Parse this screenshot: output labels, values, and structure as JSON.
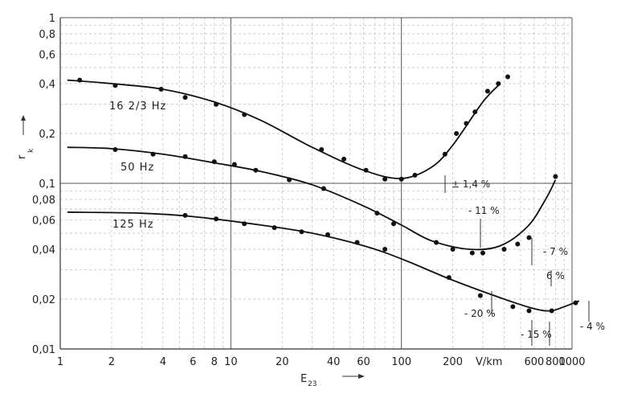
{
  "chart_data": {
    "type": "line",
    "x_scale": "log",
    "y_scale": "log",
    "xlim": [
      1,
      1000
    ],
    "ylim": [
      0.01,
      1
    ],
    "grid": true,
    "xlabel": "E",
    "xlabel_sub": "23",
    "ylabel": "r",
    "ylabel_sub": "k",
    "x_unit": "V/km",
    "x_ticks": [
      {
        "v": 1,
        "t": "1"
      },
      {
        "v": 2,
        "t": "2"
      },
      {
        "v": 4,
        "t": "4"
      },
      {
        "v": 6,
        "t": "6"
      },
      {
        "v": 8,
        "t": "8"
      },
      {
        "v": 10,
        "t": "10"
      },
      {
        "v": 20,
        "t": "20"
      },
      {
        "v": 40,
        "t": "40"
      },
      {
        "v": 60,
        "t": "60"
      },
      {
        "v": 100,
        "t": "100"
      },
      {
        "v": 200,
        "t": "200"
      },
      {
        "v": 600,
        "t": "600"
      },
      {
        "v": 800,
        "t": "800"
      },
      {
        "v": 1000,
        "t": "1000"
      }
    ],
    "y_ticks": [
      {
        "v": 1,
        "t": "1"
      },
      {
        "v": 0.8,
        "t": "0,8"
      },
      {
        "v": 0.6,
        "t": "0,6"
      },
      {
        "v": 0.4,
        "t": "0,4"
      },
      {
        "v": 0.2,
        "t": "0,2"
      },
      {
        "v": 0.1,
        "t": "0,1"
      },
      {
        "v": 0.08,
        "t": "0,08"
      },
      {
        "v": 0.06,
        "t": "0,06"
      },
      {
        "v": 0.04,
        "t": "0,04"
      },
      {
        "v": 0.02,
        "t": "0,02"
      },
      {
        "v": 0.01,
        "t": "0,01"
      }
    ],
    "series": [
      {
        "name": "16 2/3 Hz",
        "curve": [
          [
            1.1,
            0.42
          ],
          [
            2,
            0.4
          ],
          [
            4,
            0.37
          ],
          [
            8,
            0.31
          ],
          [
            15,
            0.24
          ],
          [
            30,
            0.165
          ],
          [
            60,
            0.12
          ],
          [
            100,
            0.107
          ],
          [
            150,
            0.125
          ],
          [
            200,
            0.17
          ],
          [
            300,
            0.31
          ],
          [
            380,
            0.4
          ]
        ],
        "points": [
          [
            1.3,
            0.42
          ],
          [
            2.1,
            0.39
          ],
          [
            3.9,
            0.37
          ],
          [
            5.4,
            0.33
          ],
          [
            8.2,
            0.3
          ],
          [
            12,
            0.26
          ],
          [
            34,
            0.16
          ],
          [
            46,
            0.14
          ],
          [
            62,
            0.12
          ],
          [
            80,
            0.106
          ],
          [
            100,
            0.106
          ],
          [
            120,
            0.112
          ],
          [
            180,
            0.15
          ],
          [
            210,
            0.2
          ],
          [
            240,
            0.23
          ],
          [
            270,
            0.27
          ],
          [
            320,
            0.36
          ],
          [
            370,
            0.4
          ],
          [
            420,
            0.44
          ]
        ]
      },
      {
        "name": "50 Hz",
        "curve": [
          [
            1.1,
            0.165
          ],
          [
            2,
            0.162
          ],
          [
            4,
            0.15
          ],
          [
            8,
            0.133
          ],
          [
            15,
            0.118
          ],
          [
            30,
            0.098
          ],
          [
            60,
            0.073
          ],
          [
            100,
            0.056
          ],
          [
            150,
            0.045
          ],
          [
            250,
            0.04
          ],
          [
            380,
            0.042
          ],
          [
            550,
            0.055
          ],
          [
            700,
            0.08
          ],
          [
            800,
            0.105
          ]
        ],
        "points": [
          [
            2.1,
            0.16
          ],
          [
            3.5,
            0.15
          ],
          [
            5.4,
            0.145
          ],
          [
            8,
            0.135
          ],
          [
            10.5,
            0.13
          ],
          [
            14,
            0.12
          ],
          [
            22,
            0.105
          ],
          [
            35,
            0.093
          ],
          [
            72,
            0.066
          ],
          [
            160,
            0.044
          ],
          [
            200,
            0.04
          ],
          [
            260,
            0.038
          ],
          [
            300,
            0.038
          ],
          [
            400,
            0.04
          ],
          [
            480,
            0.043
          ],
          [
            560,
            0.047
          ],
          [
            800,
            0.11
          ]
        ]
      },
      {
        "name": "125 Hz",
        "curve": [
          [
            1.1,
            0.067
          ],
          [
            3,
            0.066
          ],
          [
            6,
            0.063
          ],
          [
            15,
            0.056
          ],
          [
            30,
            0.05
          ],
          [
            60,
            0.042
          ],
          [
            100,
            0.035
          ],
          [
            200,
            0.026
          ],
          [
            400,
            0.02
          ],
          [
            600,
            0.0175
          ],
          [
            750,
            0.017
          ],
          [
            900,
            0.018
          ],
          [
            1100,
            0.0195
          ]
        ],
        "points": [
          [
            5.4,
            0.064
          ],
          [
            8.2,
            0.061
          ],
          [
            12,
            0.057
          ],
          [
            18,
            0.054
          ],
          [
            26,
            0.051
          ],
          [
            37,
            0.049
          ],
          [
            55,
            0.044
          ],
          [
            80,
            0.04
          ],
          [
            90,
            0.057
          ],
          [
            190,
            0.027
          ],
          [
            290,
            0.021
          ],
          [
            450,
            0.018
          ],
          [
            560,
            0.017
          ],
          [
            760,
            0.017
          ],
          [
            1050,
            0.019
          ]
        ]
      }
    ],
    "annotations": [
      "± 1,4 %",
      "- 11 %",
      "- 7 %",
      "6 %",
      "- 20 %",
      "- 15 %",
      "- 4 %"
    ]
  }
}
